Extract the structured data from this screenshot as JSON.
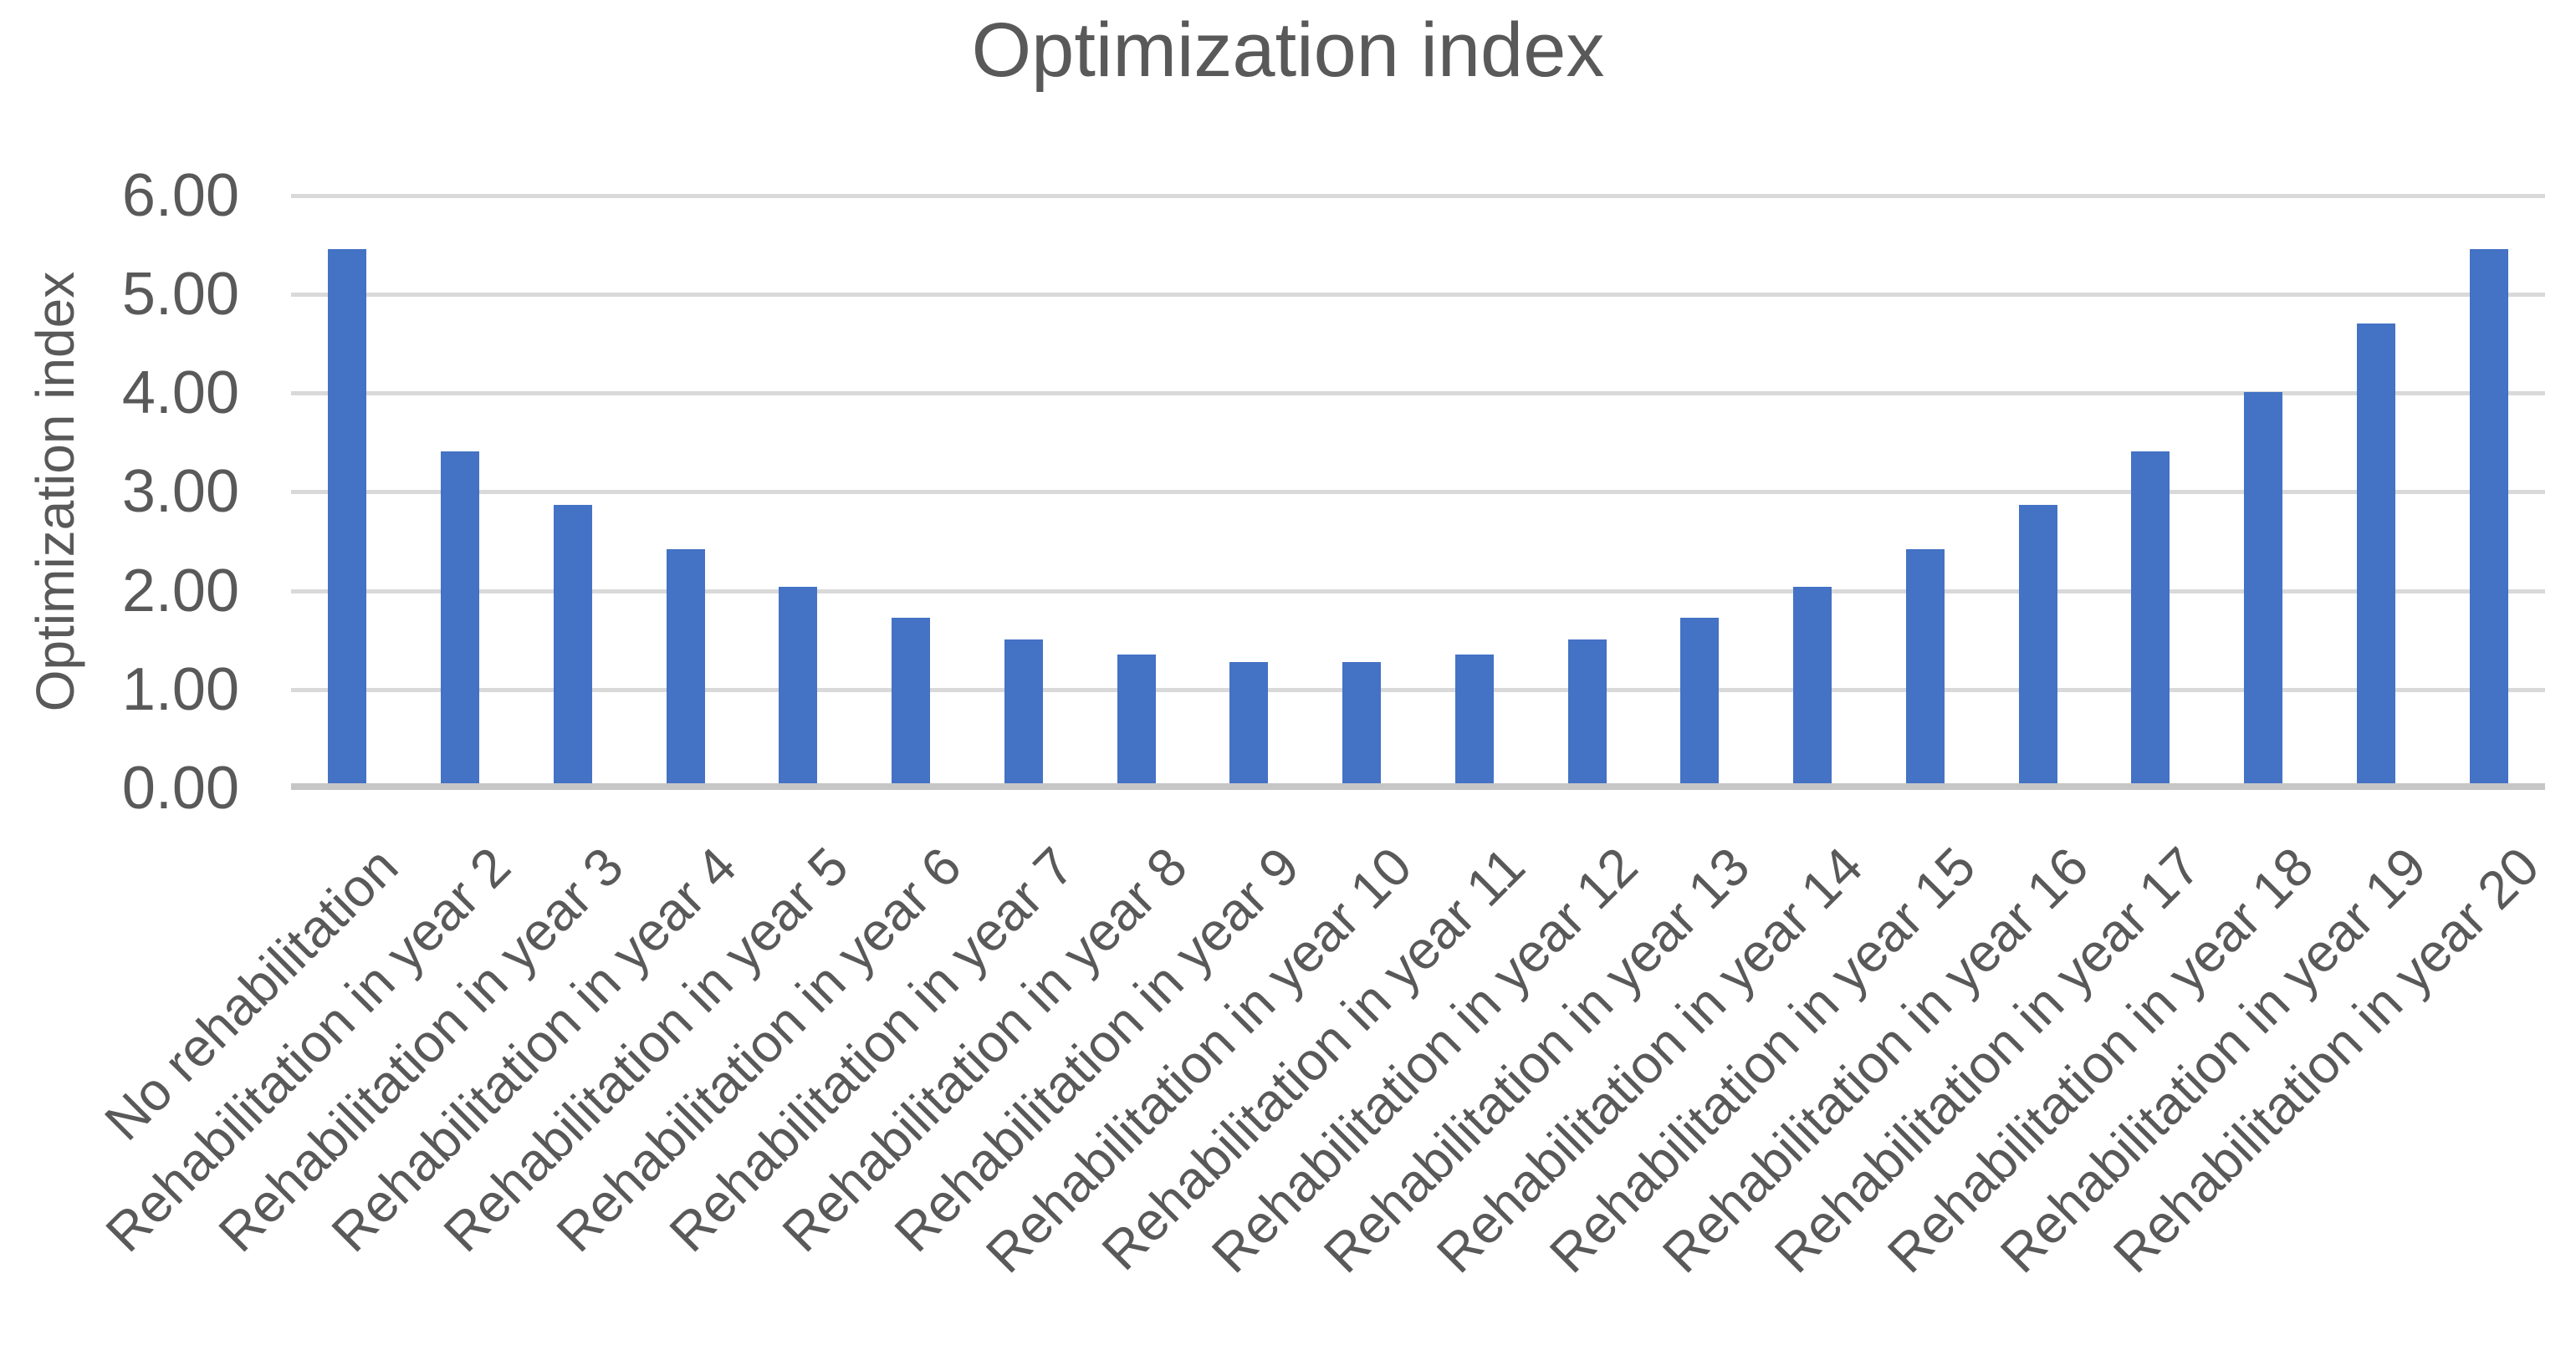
{
  "chart_data": {
    "type": "bar",
    "title": "Optimization index",
    "xlabel": "",
    "ylabel": "Optimization index",
    "categories": [
      "No rehabilitation",
      "Rehabilitation in year 2",
      "Rehabilitation in year 3",
      "Rehabilitation in year 4",
      "Rehabilitation in year 5",
      "Rehabilitation in year 6",
      "Rehabilitation in year 7",
      "Rehabilitation in year 8",
      "Rehabilitation in year 9",
      "Rehabilitation in year 10",
      "Rehabilitation in year 11",
      "Rehabilitation in year 12",
      "Rehabilitation in year 13",
      "Rehabilitation in year 14",
      "Rehabilitation in year 15",
      "Rehabilitation in year 16",
      "Rehabilitation in year 17",
      "Rehabilitation in year 18",
      "Rehabilitation in year 19",
      "Rehabilitation in year 20"
    ],
    "values": [
      5.46,
      3.41,
      2.87,
      2.42,
      2.04,
      1.73,
      1.51,
      1.35,
      1.28,
      1.28,
      1.35,
      1.51,
      1.73,
      2.04,
      2.42,
      2.87,
      3.41,
      4.01,
      4.7,
      5.46
    ],
    "ylim": [
      0,
      6
    ],
    "ytick_step": 1,
    "ytick_labels": [
      "0.00",
      "1.00",
      "2.00",
      "3.00",
      "4.00",
      "5.00",
      "6.00"
    ],
    "grid": true,
    "legend": "none",
    "x_label_rotation_deg": 45,
    "colors": {
      "bar": "#4472C4",
      "gridline": "#D9D9D9",
      "axis_line": "#C6C6C6",
      "text": "#595959"
    }
  }
}
